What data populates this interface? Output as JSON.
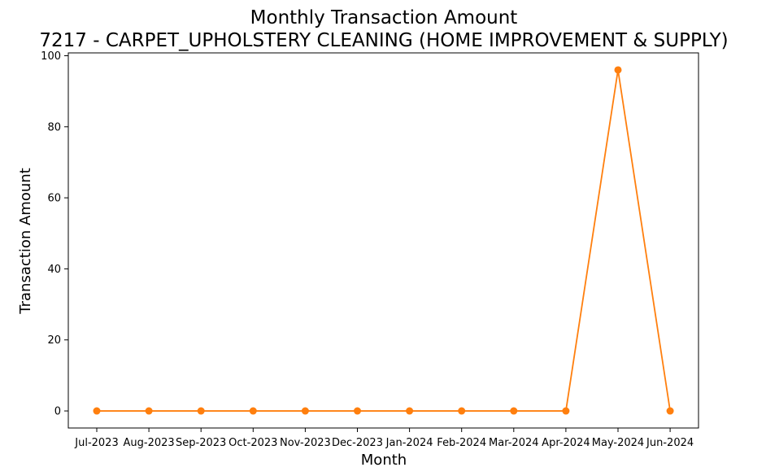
{
  "chart_data": {
    "type": "line",
    "title": "Monthly Transaction Amount",
    "subtitle": "7217 - CARPET_UPHOLSTERY CLEANING (HOME IMPROVEMENT & SUPPLY)",
    "xlabel": "Month",
    "ylabel": "Transaction Amount",
    "categories": [
      "Jul-2023",
      "Aug-2023",
      "Sep-2023",
      "Oct-2023",
      "Nov-2023",
      "Dec-2023",
      "Jan-2024",
      "Feb-2024",
      "Mar-2024",
      "Apr-2024",
      "May-2024",
      "Jun-2024"
    ],
    "series": [
      {
        "values": [
          0,
          0,
          0,
          0,
          0,
          0,
          0,
          0,
          0,
          0,
          96,
          0
        ],
        "color": "#ff7f0e",
        "marker": "circle"
      }
    ],
    "ylim": [
      -4.8,
      100.8
    ],
    "yticks": [
      0,
      20,
      40,
      60,
      80,
      100
    ],
    "grid": false,
    "legend": "none"
  }
}
